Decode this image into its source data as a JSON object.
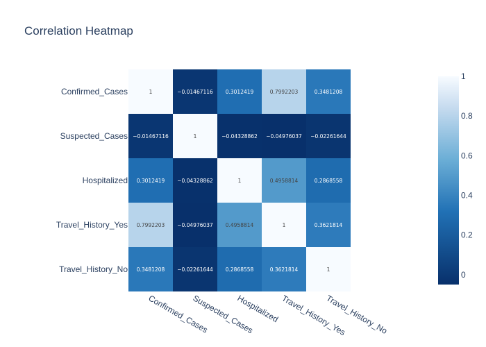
{
  "chart_data": {
    "type": "heatmap",
    "title": "Correlation Heatmap",
    "x_labels": [
      "Confirmed_Cases",
      "Suspected_Cases",
      "Hospitalized",
      "Travel_History_Yes",
      "Travel_History_No"
    ],
    "y_labels": [
      "Confirmed_Cases",
      "Suspected_Cases",
      "Hospitalized",
      "Travel_History_Yes",
      "Travel_History_No"
    ],
    "values": [
      [
        1,
        -0.01467116,
        0.3012419,
        0.7992203,
        0.3481208
      ],
      [
        -0.01467116,
        1,
        -0.04328862,
        -0.04976037,
        -0.02261644
      ],
      [
        0.3012419,
        -0.04328862,
        1,
        0.4958814,
        0.2868558
      ],
      [
        0.7992203,
        -0.04976037,
        0.4958814,
        1,
        0.3621814
      ],
      [
        0.3481208,
        -0.02261644,
        0.2868558,
        0.3621814,
        1
      ]
    ],
    "cell_text": [
      [
        "1",
        "−0.01467116",
        "0.3012419",
        "0.7992203",
        "0.3481208"
      ],
      [
        "−0.01467116",
        "1",
        "−0.04328862",
        "−0.04976037",
        "−0.02261644"
      ],
      [
        "0.3012419",
        "−0.04328862",
        "1",
        "0.4958814",
        "0.2868558"
      ],
      [
        "0.7992203",
        "−0.04976037",
        "0.4958814",
        "1",
        "0.3621814"
      ],
      [
        "0.3481208",
        "−0.02261644",
        "0.2868558",
        "0.3621814",
        "1"
      ]
    ],
    "colorscale": "Blues (reversed)",
    "zmin": -0.04976037,
    "zmax": 1,
    "colorbar_ticks": [
      {
        "value": 0,
        "label": "0"
      },
      {
        "value": 0.2,
        "label": "0.2"
      },
      {
        "value": 0.4,
        "label": "0.4"
      },
      {
        "value": 0.6,
        "label": "0.6"
      },
      {
        "value": 0.8,
        "label": "0.8"
      },
      {
        "value": 1,
        "label": "1"
      }
    ],
    "legend": "colorbar right"
  }
}
